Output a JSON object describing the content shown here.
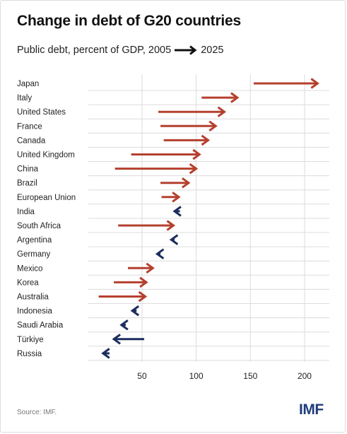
{
  "header": {
    "title": "Change in debt of G20 countries",
    "subtitle_prefix": "Public debt, percent of GDP, 2005",
    "subtitle_suffix": "2025"
  },
  "footer": {
    "source": "Source: IMF.",
    "logo": "IMF"
  },
  "colors": {
    "increase": "#b5402e",
    "decrease": "#1c2e5e",
    "grid": "#dcdcdc"
  },
  "chart_data": {
    "type": "arrow",
    "title": "Change in debt of G20 countries",
    "subtitle": "Public debt, percent of GDP, 2005 → 2025",
    "xlabel": "",
    "ylabel": "",
    "xlim": [
      0,
      220
    ],
    "xticks": [
      50,
      100,
      150,
      200
    ],
    "grid": true,
    "series": [
      {
        "name": "2005",
        "values": [
          153,
          105,
          65,
          67,
          70,
          40,
          25,
          67,
          68,
          85,
          28,
          80,
          67,
          37,
          24,
          10,
          45,
          35,
          52,
          20
        ]
      },
      {
        "name": "2025",
        "values": [
          212,
          138,
          126,
          118,
          111,
          103,
          100,
          93,
          84,
          80,
          79,
          77,
          64,
          60,
          54,
          53,
          41,
          31,
          24,
          14
        ]
      }
    ],
    "categories": [
      "Japan",
      "Italy",
      "United States",
      "France",
      "Canada",
      "United Kingdom",
      "China",
      "Brazil",
      "European Union",
      "India",
      "South Africa",
      "Argentina",
      "Germany",
      "Mexico",
      "Korea",
      "Australia",
      "Indonesia",
      "Saudi Arabia",
      "Türkiye",
      "Russia"
    ]
  }
}
